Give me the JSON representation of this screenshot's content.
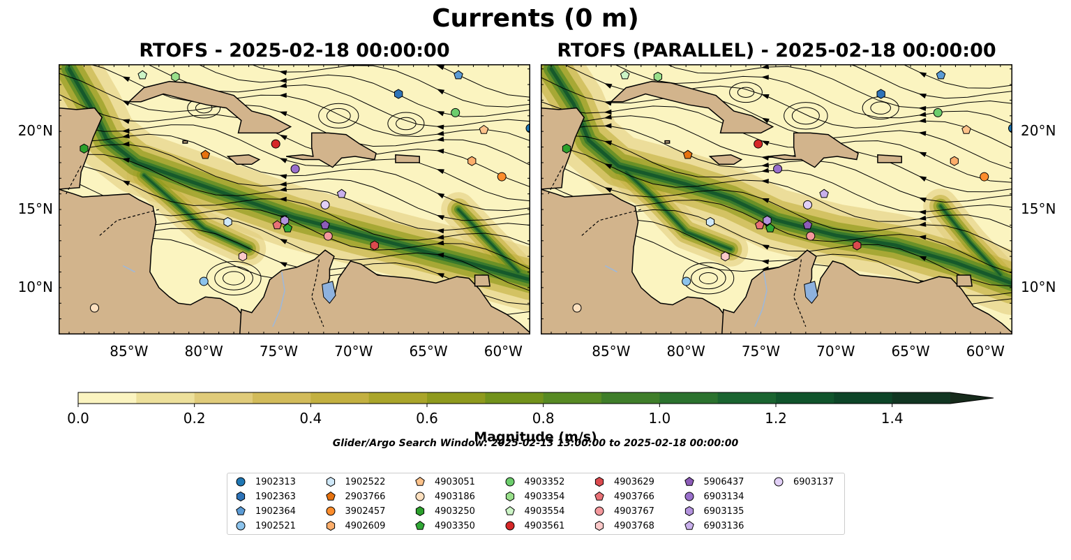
{
  "title": "Currents (0 m)",
  "panels": [
    {
      "title": "RTOFS - 2025-02-18 00:00:00"
    },
    {
      "title": "RTOFS (PARALLEL) - 2025-02-18 00:00:00"
    }
  ],
  "lon_ticks": [
    "85°W",
    "80°W",
    "75°W",
    "70°W",
    "65°W",
    "60°W"
  ],
  "lat_ticks": [
    "20°N",
    "15°N",
    "10°N"
  ],
  "colorbar": {
    "label": "Magnitude (m/s)",
    "tick_labels": [
      "0.0",
      "0.2",
      "0.4",
      "0.6",
      "0.8",
      "1.0",
      "1.2",
      "1.4"
    ],
    "colors": [
      "#fbf4c0",
      "#ede09b",
      "#e0cb7a",
      "#d2bb5a",
      "#c3b040",
      "#aaa52a",
      "#8f9a1d",
      "#72921b",
      "#578a23",
      "#3f7e2a",
      "#2b722e",
      "#1a6430",
      "#10542c",
      "#0d4528",
      "#113622",
      "#162a1b"
    ]
  },
  "search_window": "Glider/Argo Search Window: 2025-02-13 13:00:00 to 2025-02-18 00:00:00",
  "legend": [
    {
      "id": "1902313",
      "marker": "circle",
      "color": "#1f77b4"
    },
    {
      "id": "1902363",
      "marker": "hexagon",
      "color": "#2e73b8"
    },
    {
      "id": "1902364",
      "marker": "pentagon",
      "color": "#5b9bd5"
    },
    {
      "id": "1902521",
      "marker": "circle",
      "color": "#8cc3ec"
    },
    {
      "id": "1902522",
      "marker": "hexagon",
      "color": "#cfe8f8"
    },
    {
      "id": "2903766",
      "marker": "pentagon",
      "color": "#e6720f"
    },
    {
      "id": "3902457",
      "marker": "circle",
      "color": "#fd8d2c"
    },
    {
      "id": "4902609",
      "marker": "hexagon",
      "color": "#fdae6b"
    },
    {
      "id": "4903051",
      "marker": "pentagon",
      "color": "#fdc28a"
    },
    {
      "id": "4903186",
      "marker": "circle",
      "color": "#fde0bf"
    },
    {
      "id": "4903250",
      "marker": "hexagon",
      "color": "#2ca02c"
    },
    {
      "id": "4903350",
      "marker": "pentagon",
      "color": "#31a836"
    },
    {
      "id": "4903352",
      "marker": "circle",
      "color": "#6ccd6c"
    },
    {
      "id": "4903354",
      "marker": "hexagon",
      "color": "#98df8a"
    },
    {
      "id": "4903554",
      "marker": "pentagon",
      "color": "#ccf4c6"
    },
    {
      "id": "4903561",
      "marker": "circle",
      "color": "#d62728"
    },
    {
      "id": "4903629",
      "marker": "hexagon",
      "color": "#db4a4e"
    },
    {
      "id": "4903766",
      "marker": "pentagon",
      "color": "#e87176"
    },
    {
      "id": "4903767",
      "marker": "circle",
      "color": "#f4989c"
    },
    {
      "id": "4903768",
      "marker": "hexagon",
      "color": "#fcc9c9"
    },
    {
      "id": "5906437",
      "marker": "pentagon",
      "color": "#8c5cb8"
    },
    {
      "id": "6903134",
      "marker": "circle",
      "color": "#9a70cc"
    },
    {
      "id": "6903135",
      "marker": "hexagon",
      "color": "#b393dd"
    },
    {
      "id": "6903136",
      "marker": "pentagon",
      "color": "#c9b0ec"
    },
    {
      "id": "6903137",
      "marker": "circle",
      "color": "#e2d0f7"
    }
  ],
  "floats": [
    {
      "id": "1902313",
      "lon": -58.2,
      "lat": 20.2
    },
    {
      "id": "1902363",
      "lon": -67.0,
      "lat": 22.4
    },
    {
      "id": "1902364",
      "lon": -63.0,
      "lat": 23.6
    },
    {
      "id": "1902521",
      "lon": -80.0,
      "lat": 10.4
    },
    {
      "id": "1902522",
      "lon": -78.4,
      "lat": 14.2
    },
    {
      "id": "2903766",
      "lon": -79.9,
      "lat": 18.5
    },
    {
      "id": "3902457",
      "lon": -60.1,
      "lat": 17.1
    },
    {
      "id": "4902609",
      "lon": -62.1,
      "lat": 18.1
    },
    {
      "id": "4903051",
      "lon": -61.3,
      "lat": 20.1
    },
    {
      "id": "4903186",
      "lon": -87.3,
      "lat": 8.7
    },
    {
      "id": "4903250",
      "lon": -88.0,
      "lat": 18.9
    },
    {
      "id": "4903350",
      "lon": -74.4,
      "lat": 13.8
    },
    {
      "id": "4903352",
      "lon": -63.2,
      "lat": 21.2
    },
    {
      "id": "4903354",
      "lon": -81.9,
      "lat": 23.5
    },
    {
      "id": "4903554",
      "lon": -84.1,
      "lat": 23.6
    },
    {
      "id": "4903561",
      "lon": -75.2,
      "lat": 19.2
    },
    {
      "id": "4903629",
      "lon": -68.6,
      "lat": 12.7
    },
    {
      "id": "4903766",
      "lon": -75.1,
      "lat": 14.0
    },
    {
      "id": "4903767",
      "lon": -71.7,
      "lat": 13.3
    },
    {
      "id": "4903768",
      "lon": -77.4,
      "lat": 12.0
    },
    {
      "id": "5906437",
      "lon": -71.9,
      "lat": 14.0
    },
    {
      "id": "6903134",
      "lon": -73.9,
      "lat": 17.6
    },
    {
      "id": "6903135",
      "lon": -74.6,
      "lat": 14.3
    },
    {
      "id": "6903136",
      "lon": -70.8,
      "lat": 16.0
    },
    {
      "id": "6903137",
      "lon": -71.9,
      "lat": 15.3
    }
  ],
  "map": {
    "lon_range": [
      -89.7,
      -58.2
    ],
    "lat_range": [
      7.0,
      24.3
    ],
    "colors": {
      "land": "#d2b48c",
      "lake": "#8eb2de",
      "river": "#9fb8d8"
    }
  }
}
